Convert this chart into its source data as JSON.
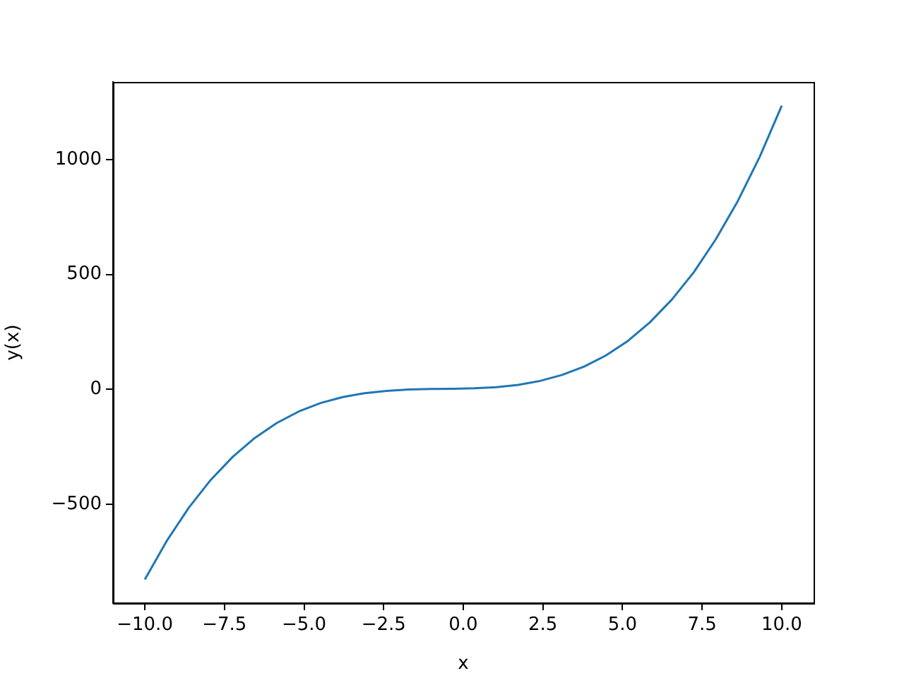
{
  "chart_data": {
    "type": "line",
    "xlabel": "x",
    "ylabel": "y(x)",
    "x": [
      -10,
      -9.31,
      -8.62,
      -7.93,
      -7.24,
      -6.55,
      -5.86,
      -5.17,
      -4.48,
      -3.79,
      -3.1,
      -2.41,
      -1.72,
      -1.03,
      -0.34,
      0.34,
      1.03,
      1.72,
      2.41,
      3.1,
      3.79,
      4.48,
      5.17,
      5.86,
      6.55,
      7.24,
      7.93,
      8.62,
      9.31,
      10
    ],
    "series": [
      {
        "color": "#1f77b4",
        "values": [
          -826,
          -658,
          -514,
          -393,
          -293,
          -211,
          -146,
          -96,
          -59,
          -33,
          -16,
          -6,
          0,
          2,
          3,
          5,
          10,
          20,
          37,
          63,
          99,
          148,
          211,
          292,
          391,
          510,
          653,
          819,
          1012,
          1234
        ]
      }
    ],
    "xlim": [
      -11,
      11
    ],
    "ylim": [
      -929,
      1337
    ],
    "xticks": [
      {
        "value": -10,
        "label": "−10.0"
      },
      {
        "value": -7.5,
        "label": "−7.5"
      },
      {
        "value": -5,
        "label": "−5.0"
      },
      {
        "value": -2.5,
        "label": "−2.5"
      },
      {
        "value": 0,
        "label": "0.0"
      },
      {
        "value": 2.5,
        "label": "2.5"
      },
      {
        "value": 5,
        "label": "5.0"
      },
      {
        "value": 7.5,
        "label": "7.5"
      },
      {
        "value": 10,
        "label": "10.0"
      }
    ],
    "yticks": [
      {
        "value": -500,
        "label": "−500"
      },
      0,
      500,
      1000
    ],
    "grid": false,
    "marker": "none",
    "line_style": "solid",
    "legend": false
  }
}
